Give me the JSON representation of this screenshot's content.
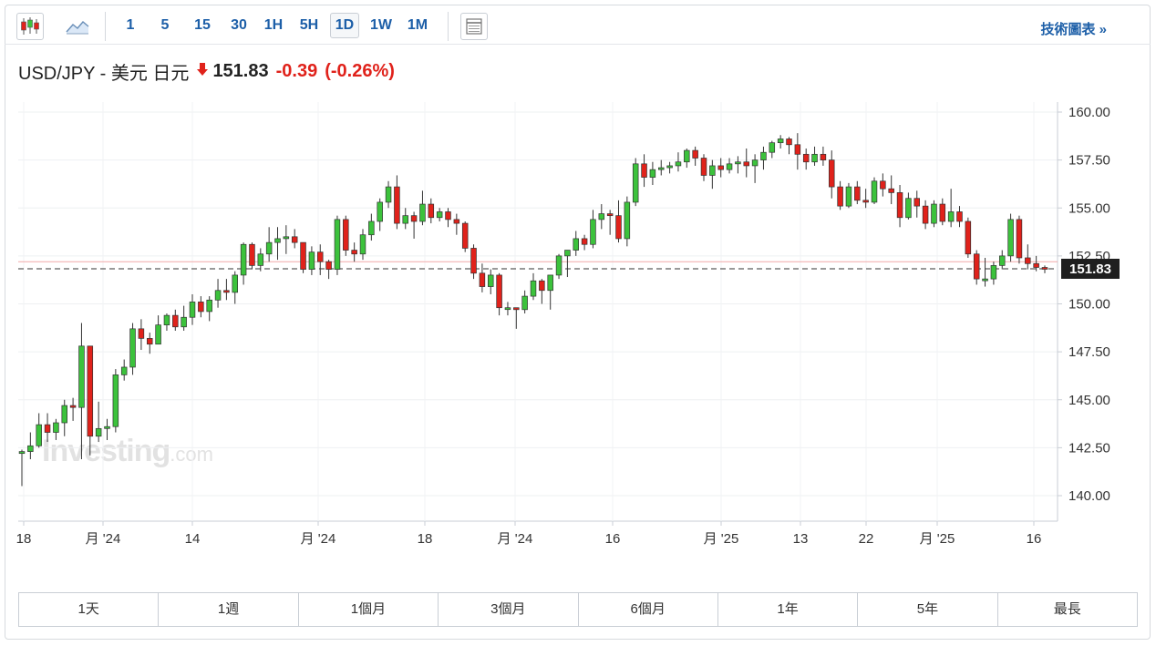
{
  "toolbar": {
    "chart_types": [
      "candlestick-icon",
      "line-chart-icon"
    ],
    "intervals": [
      "1",
      "5",
      "15",
      "30",
      "1H",
      "5H",
      "1D",
      "1W",
      "1M"
    ],
    "active_interval": "1D",
    "settings_icon": "table-icon",
    "tech_link": "技術圖表 »"
  },
  "header": {
    "pair": "USD/JPY - 美元 日元",
    "direction_icon": "down-arrow-icon",
    "price": "151.83",
    "change": "-0.39",
    "change_pct": "(-0.26%)"
  },
  "watermark": {
    "brand": "Investing",
    "suffix": ".com"
  },
  "colors": {
    "up": "#3cc23c",
    "down": "#e0221b",
    "accent": "#1d5fa8",
    "price_tag": "#1f1f1f"
  },
  "periods": [
    "1天",
    "1週",
    "1個月",
    "3個月",
    "6個月",
    "1年",
    "5年",
    "最長"
  ],
  "chart_data": {
    "type": "candlestick",
    "instrument": "USD/JPY",
    "interval": "1D",
    "y_ticks": [
      "160.00",
      "157.50",
      "155.00",
      "152.50",
      "150.00",
      "147.50",
      "145.00",
      "142.50",
      "140.00"
    ],
    "ylim": [
      139.0,
      161.0
    ],
    "x_tick_labels": [
      "18",
      "月 '24",
      "14",
      "月 '24",
      "18",
      "月 '24",
      "16",
      "月 '25",
      "13",
      "22",
      "月 '25",
      "16"
    ],
    "last_price": "151.83",
    "reference_line": 152.2,
    "current_line": 151.83,
    "grid": true,
    "candles": [
      [
        142.2,
        142.3,
        140.5,
        142.4
      ],
      [
        142.3,
        142.6,
        141.9,
        143.3
      ],
      [
        142.6,
        143.7,
        142.5,
        144.3
      ],
      [
        143.7,
        143.3,
        142.8,
        144.3
      ],
      [
        143.3,
        143.8,
        142.9,
        144.0
      ],
      [
        143.8,
        144.7,
        143.1,
        145.0
      ],
      [
        144.7,
        144.6,
        143.9,
        145.1
      ],
      [
        144.6,
        147.8,
        141.9,
        149.0
      ],
      [
        147.8,
        143.1,
        142.1,
        147.8
      ],
      [
        143.1,
        143.5,
        142.8,
        144.9
      ],
      [
        143.5,
        143.6,
        142.9,
        144.0
      ],
      [
        143.6,
        146.3,
        143.3,
        146.6
      ],
      [
        146.3,
        146.7,
        146.0,
        147.1
      ],
      [
        146.7,
        148.7,
        146.3,
        149.0
      ],
      [
        148.7,
        148.2,
        147.6,
        149.2
      ],
      [
        148.2,
        147.9,
        147.4,
        148.5
      ],
      [
        147.9,
        148.9,
        147.9,
        149.4
      ],
      [
        148.9,
        149.4,
        148.6,
        149.5
      ],
      [
        149.4,
        148.8,
        148.6,
        149.7
      ],
      [
        148.8,
        149.3,
        148.6,
        149.9
      ],
      [
        149.3,
        150.1,
        148.9,
        150.5
      ],
      [
        150.1,
        149.6,
        149.3,
        150.4
      ],
      [
        149.6,
        150.2,
        149.1,
        150.4
      ],
      [
        150.2,
        150.7,
        149.8,
        151.3
      ],
      [
        150.7,
        150.6,
        150.2,
        151.3
      ],
      [
        150.6,
        151.5,
        150.0,
        151.7
      ],
      [
        151.5,
        153.1,
        151.0,
        153.2
      ],
      [
        153.1,
        152.0,
        151.8,
        153.2
      ],
      [
        152.0,
        152.6,
        151.7,
        152.9
      ],
      [
        152.6,
        153.2,
        152.2,
        154.0
      ],
      [
        153.2,
        153.4,
        152.3,
        154.0
      ],
      [
        153.4,
        153.5,
        152.6,
        154.1
      ],
      [
        153.5,
        153.2,
        152.9,
        153.9
      ],
      [
        153.2,
        151.8,
        151.6,
        153.2
      ],
      [
        151.8,
        152.7,
        151.5,
        153.0
      ],
      [
        152.7,
        152.2,
        151.5,
        153.1
      ],
      [
        152.2,
        151.8,
        151.3,
        152.3
      ],
      [
        151.8,
        154.4,
        151.5,
        154.6
      ],
      [
        154.4,
        152.8,
        152.5,
        154.6
      ],
      [
        152.8,
        152.6,
        152.2,
        153.2
      ],
      [
        152.6,
        153.6,
        152.3,
        153.9
      ],
      [
        153.6,
        154.3,
        153.3,
        154.7
      ],
      [
        154.3,
        155.3,
        153.8,
        155.5
      ],
      [
        155.3,
        156.1,
        155.0,
        156.4
      ],
      [
        156.1,
        154.2,
        153.9,
        156.7
      ],
      [
        154.2,
        154.6,
        153.9,
        155.0
      ],
      [
        154.6,
        154.3,
        153.4,
        154.8
      ],
      [
        154.3,
        155.2,
        154.1,
        155.9
      ],
      [
        155.2,
        154.5,
        154.2,
        155.5
      ],
      [
        154.5,
        154.8,
        154.3,
        155.0
      ],
      [
        154.8,
        154.4,
        154.0,
        155.0
      ],
      [
        154.4,
        154.2,
        153.6,
        154.7
      ],
      [
        154.2,
        152.9,
        152.7,
        154.3
      ],
      [
        152.9,
        151.6,
        151.3,
        153.1
      ],
      [
        151.6,
        150.9,
        150.6,
        152.1
      ],
      [
        150.9,
        151.5,
        150.5,
        151.8
      ],
      [
        151.5,
        149.8,
        149.4,
        151.6
      ],
      [
        149.8,
        149.8,
        149.4,
        150.1
      ],
      [
        149.8,
        149.7,
        148.7,
        149.8
      ],
      [
        149.7,
        150.4,
        149.5,
        150.7
      ],
      [
        150.4,
        151.2,
        150.2,
        151.6
      ],
      [
        151.2,
        150.7,
        150.0,
        151.3
      ],
      [
        150.7,
        151.5,
        149.7,
        151.5
      ],
      [
        151.5,
        152.5,
        151.3,
        152.6
      ],
      [
        152.5,
        152.8,
        151.4,
        152.8
      ],
      [
        152.8,
        153.4,
        152.5,
        153.8
      ],
      [
        153.4,
        153.1,
        152.8,
        153.6
      ],
      [
        153.1,
        154.4,
        152.9,
        154.9
      ],
      [
        154.4,
        154.7,
        153.9,
        155.2
      ],
      [
        154.7,
        154.6,
        153.6,
        154.9
      ],
      [
        154.6,
        153.4,
        153.2,
        155.4
      ],
      [
        153.4,
        155.3,
        153.0,
        155.6
      ],
      [
        155.3,
        157.3,
        155.1,
        157.6
      ],
      [
        157.3,
        156.6,
        156.1,
        157.8
      ],
      [
        156.6,
        157.0,
        156.2,
        157.4
      ],
      [
        157.0,
        157.1,
        156.7,
        157.5
      ],
      [
        157.1,
        157.2,
        156.8,
        157.4
      ],
      [
        157.2,
        157.4,
        156.9,
        157.9
      ],
      [
        157.4,
        158.0,
        157.1,
        158.1
      ],
      [
        158.0,
        157.6,
        157.2,
        158.2
      ],
      [
        157.6,
        156.7,
        156.4,
        157.8
      ],
      [
        156.7,
        157.2,
        156.0,
        157.5
      ],
      [
        157.2,
        157.0,
        156.6,
        157.6
      ],
      [
        157.0,
        157.3,
        156.8,
        157.6
      ],
      [
        157.3,
        157.4,
        156.8,
        157.7
      ],
      [
        157.4,
        157.2,
        156.6,
        158.1
      ],
      [
        157.2,
        157.5,
        156.3,
        157.8
      ],
      [
        157.5,
        157.9,
        157.0,
        158.2
      ],
      [
        157.9,
        158.4,
        157.6,
        158.5
      ],
      [
        158.4,
        158.6,
        158.1,
        158.8
      ],
      [
        158.6,
        158.3,
        157.8,
        158.7
      ],
      [
        158.3,
        157.8,
        157.0,
        158.9
      ],
      [
        157.8,
        157.4,
        157.0,
        158.1
      ],
      [
        157.4,
        157.8,
        157.2,
        158.2
      ],
      [
        157.8,
        157.5,
        157.2,
        158.2
      ],
      [
        157.5,
        156.1,
        155.5,
        158.0
      ],
      [
        156.1,
        155.1,
        154.9,
        156.4
      ],
      [
        155.1,
        156.1,
        155.0,
        156.3
      ],
      [
        156.1,
        155.4,
        155.2,
        156.4
      ],
      [
        155.4,
        155.3,
        155.0,
        156.0
      ],
      [
        155.3,
        156.4,
        155.2,
        156.6
      ],
      [
        156.4,
        156.0,
        155.6,
        156.8
      ],
      [
        156.0,
        155.8,
        155.2,
        156.7
      ],
      [
        155.8,
        154.5,
        154.0,
        156.2
      ],
      [
        154.5,
        155.5,
        154.4,
        155.8
      ],
      [
        155.5,
        155.1,
        154.5,
        155.9
      ],
      [
        155.1,
        154.2,
        153.9,
        155.4
      ],
      [
        154.2,
        155.2,
        154.0,
        155.4
      ],
      [
        155.2,
        154.3,
        154.1,
        155.5
      ],
      [
        154.3,
        154.8,
        154.0,
        156.0
      ],
      [
        154.8,
        154.3,
        154.0,
        155.1
      ],
      [
        154.3,
        152.6,
        152.4,
        154.5
      ],
      [
        152.6,
        151.3,
        151.0,
        152.8
      ],
      [
        151.3,
        151.3,
        150.9,
        152.4
      ],
      [
        151.3,
        152.0,
        151.0,
        152.2
      ],
      [
        152.0,
        152.5,
        151.8,
        152.8
      ],
      [
        152.5,
        154.4,
        152.2,
        154.7
      ],
      [
        154.4,
        152.4,
        152.1,
        154.6
      ],
      [
        152.4,
        152.1,
        151.8,
        153.1
      ],
      [
        152.1,
        151.9,
        151.7,
        152.5
      ],
      [
        151.9,
        151.83,
        151.6,
        152.0
      ]
    ]
  }
}
